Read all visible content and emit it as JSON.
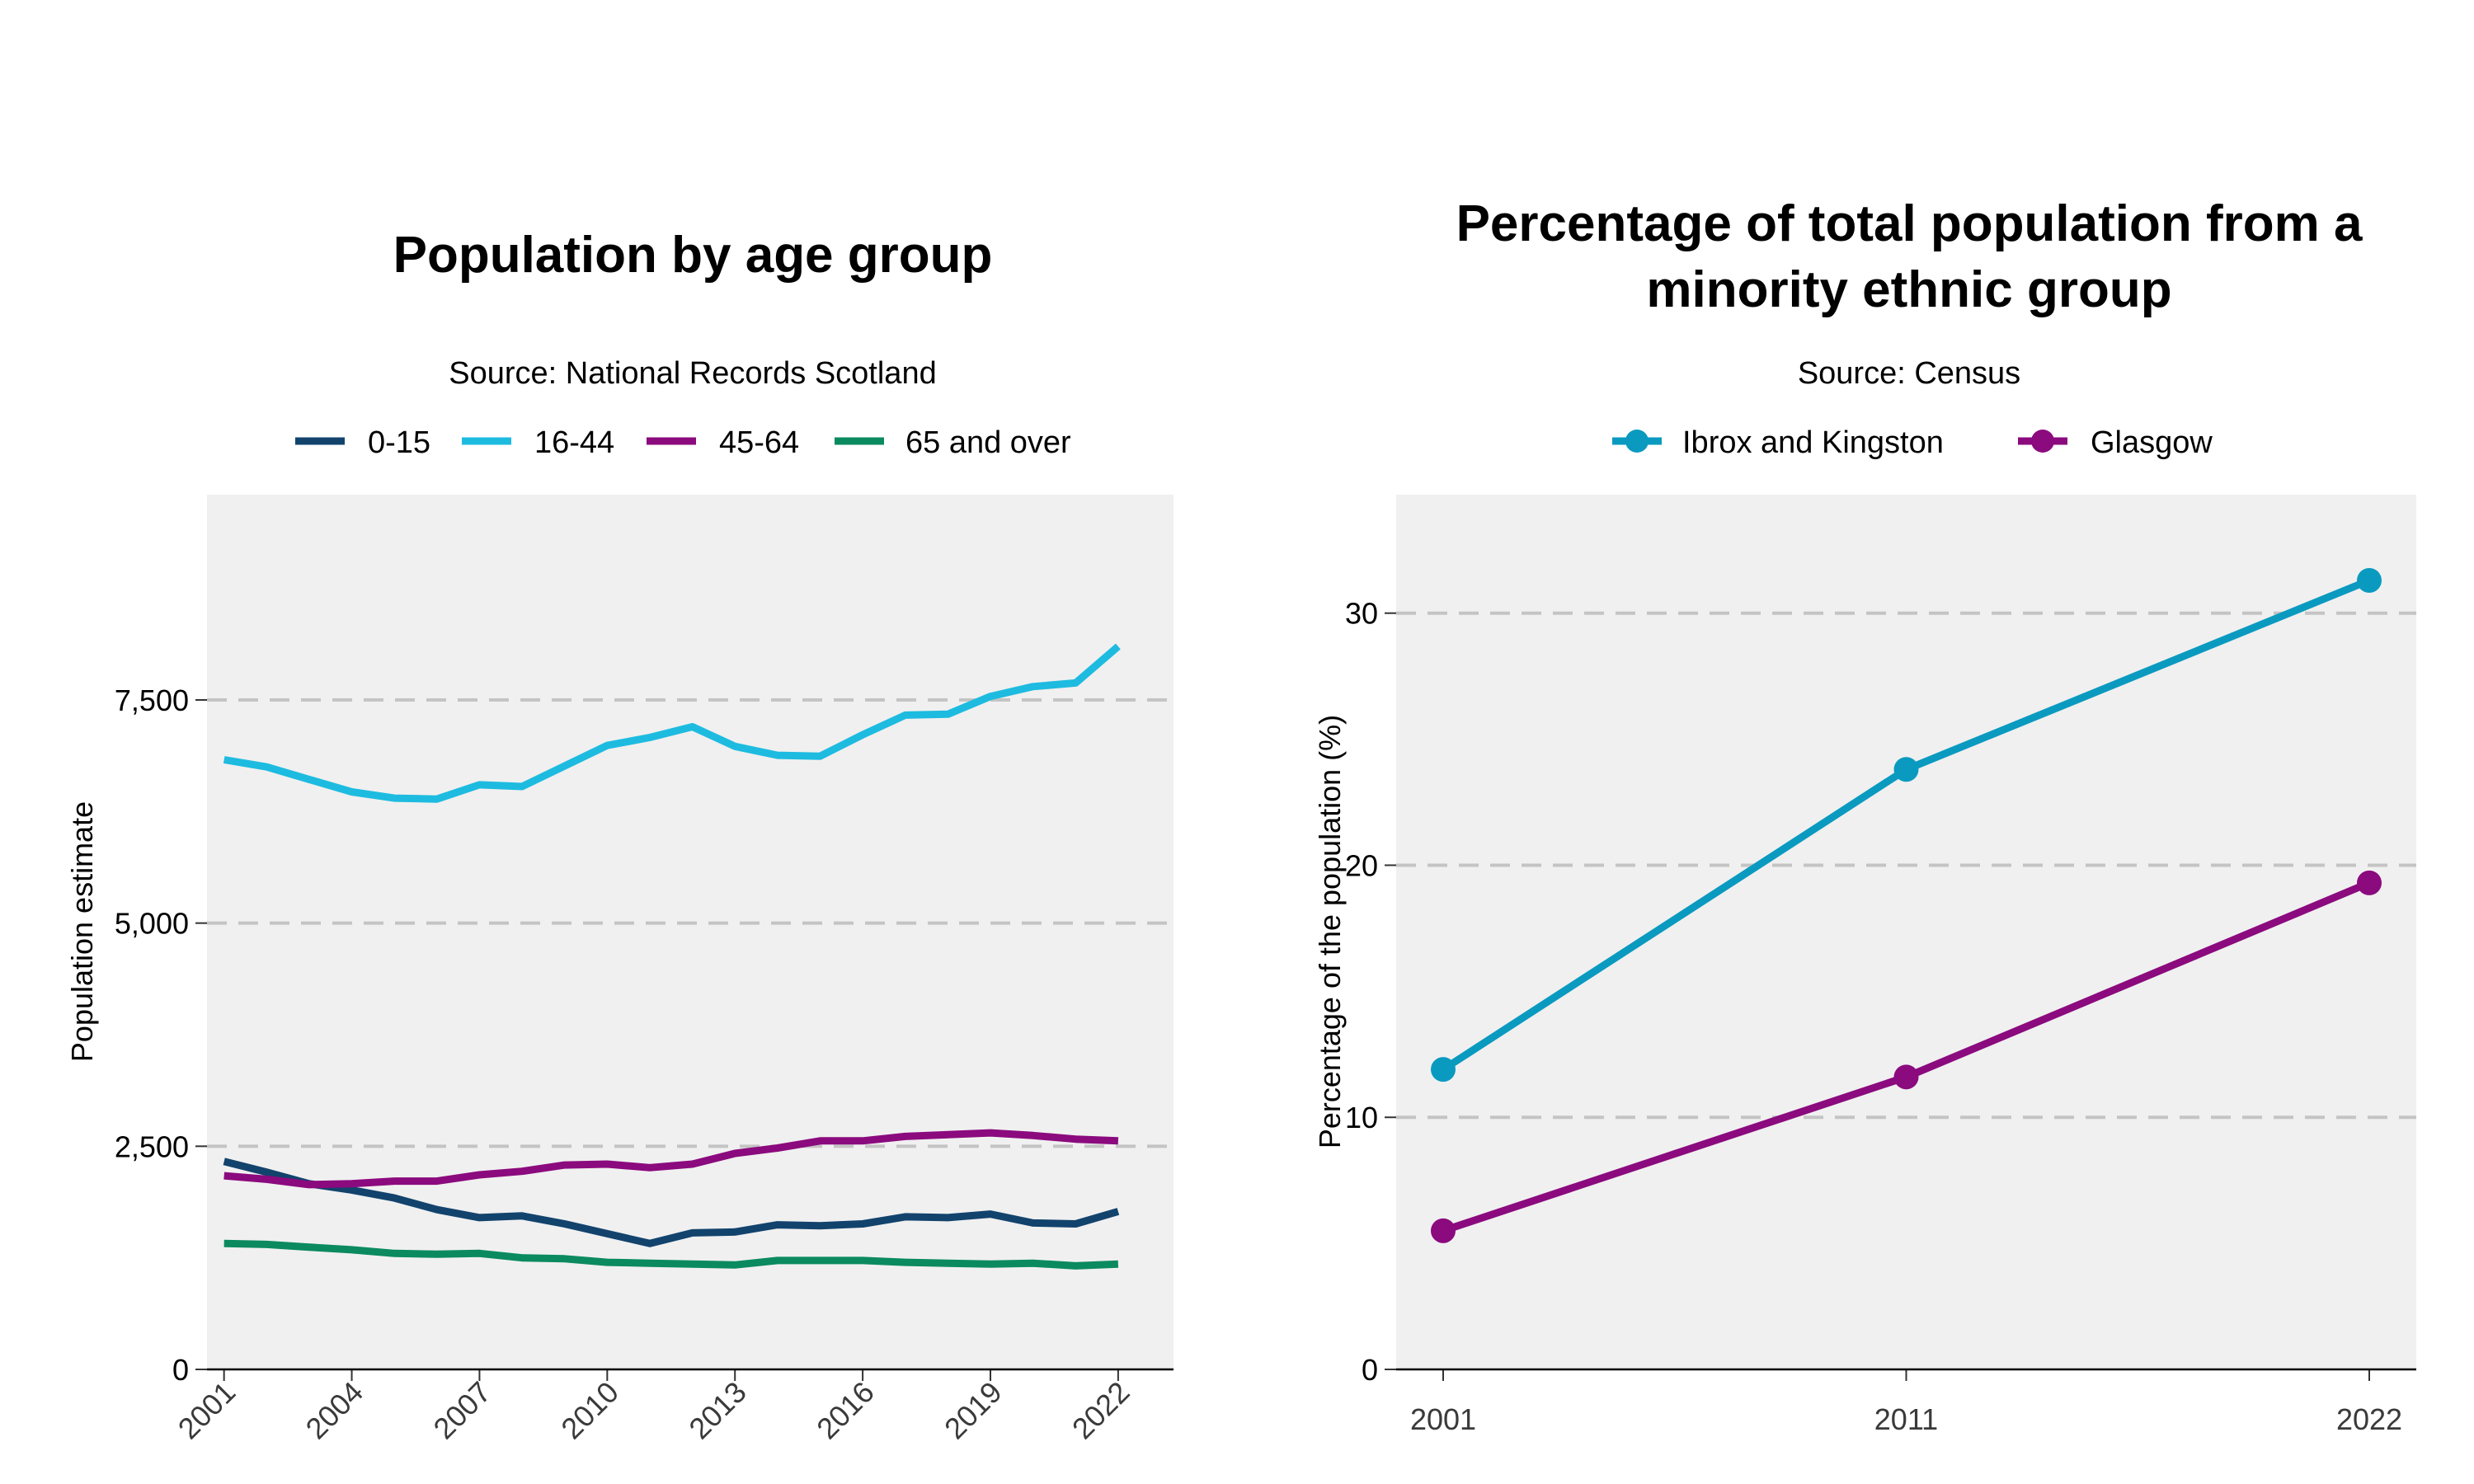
{
  "chart_data": [
    {
      "type": "line",
      "title": "Population by age group",
      "subtitle": "Source: National Records Scotland",
      "xlabel": "",
      "ylabel": "Population estimate",
      "ylim": [
        0,
        9800
      ],
      "yticks": [
        0,
        2500,
        5000,
        7500
      ],
      "ytick_labels": [
        "0",
        "2,500",
        "5,000",
        "7,500"
      ],
      "xlim": [
        2000.6,
        2023.3
      ],
      "xticks": [
        2001,
        2004,
        2007,
        2010,
        2013,
        2016,
        2019,
        2022
      ],
      "xtick_labels": [
        "2001",
        "2004",
        "2007",
        "2010",
        "2013",
        "2016",
        "2019",
        "2022"
      ],
      "x": [
        2001,
        2002,
        2003,
        2004,
        2005,
        2006,
        2007,
        2008,
        2009,
        2010,
        2011,
        2012,
        2013,
        2014,
        2015,
        2016,
        2017,
        2018,
        2019,
        2020,
        2021,
        2022
      ],
      "series": [
        {
          "name": "0-15",
          "color": "#12436d",
          "values": [
            2330,
            2210,
            2080,
            2010,
            1920,
            1790,
            1700,
            1720,
            1630,
            1520,
            1410,
            1530,
            1540,
            1620,
            1610,
            1630,
            1710,
            1700,
            1740,
            1640,
            1630,
            1770
          ]
        },
        {
          "name": "16-44",
          "color": "#1ebbe0",
          "values": [
            6830,
            6750,
            6610,
            6470,
            6400,
            6390,
            6550,
            6530,
            6760,
            6990,
            7080,
            7200,
            6980,
            6880,
            6870,
            7110,
            7330,
            7340,
            7540,
            7650,
            7690,
            8100
          ]
        },
        {
          "name": "45-64",
          "color": "#8b0a7e",
          "values": [
            2170,
            2130,
            2070,
            2080,
            2110,
            2110,
            2180,
            2220,
            2290,
            2300,
            2260,
            2300,
            2420,
            2480,
            2560,
            2560,
            2610,
            2630,
            2650,
            2620,
            2580,
            2560
          ]
        },
        {
          "name": "65 and over",
          "color": "#0b8a5f",
          "values": [
            1410,
            1400,
            1370,
            1340,
            1300,
            1290,
            1300,
            1250,
            1240,
            1200,
            1190,
            1180,
            1170,
            1220,
            1220,
            1220,
            1200,
            1190,
            1180,
            1190,
            1160,
            1180
          ]
        }
      ]
    },
    {
      "type": "line",
      "title": "Percentage of total population from a minority ethnic group",
      "title_lines": [
        "Percentage of total population from a",
        "minority ethnic group"
      ],
      "subtitle": "Source: Census",
      "xlabel": "",
      "ylabel": "Percentage of the population (%)",
      "ylim": [
        0,
        34.7
      ],
      "yticks": [
        0,
        10,
        20,
        30
      ],
      "ytick_labels": [
        "0",
        "10",
        "20",
        "30"
      ],
      "categories": [
        "2001",
        "2011",
        "2022"
      ],
      "series": [
        {
          "name": "Ibrox and Kingston",
          "color": "#0a9ac0",
          "values": [
            11.9,
            23.8,
            31.3
          ]
        },
        {
          "name": "Glasgow",
          "color": "#8b0a7e",
          "values": [
            5.5,
            11.6,
            19.3
          ]
        }
      ]
    }
  ]
}
